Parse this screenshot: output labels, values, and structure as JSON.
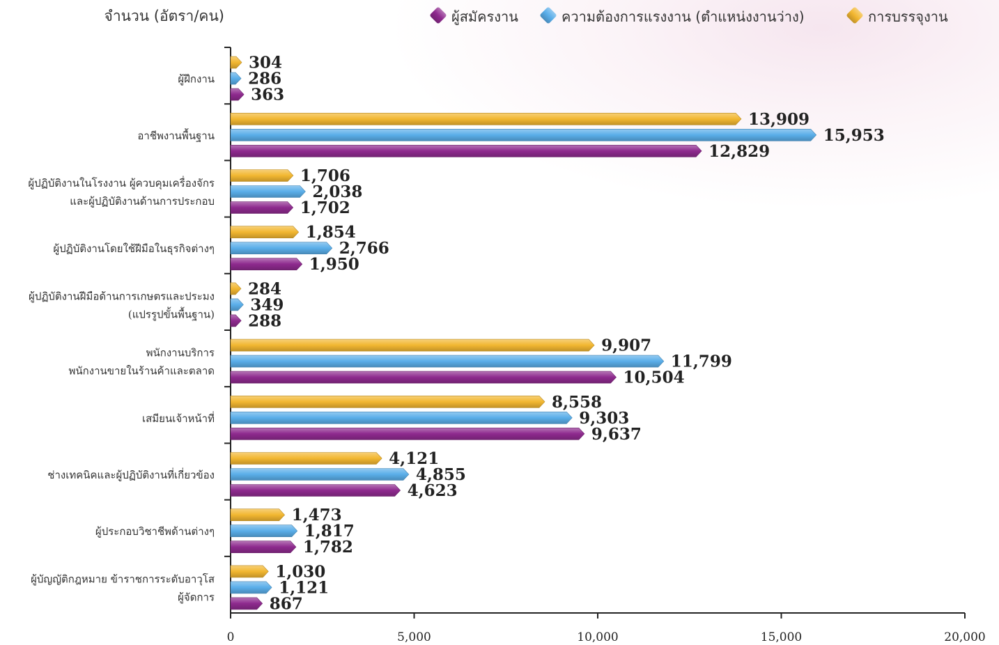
{
  "chart_data": {
    "type": "bar",
    "orientation": "horizontal",
    "unit_label": "จำนวน (อัตรา/คน)",
    "categories": [
      [
        "ผู้ฝึกงาน"
      ],
      [
        "อาชีพงานพื้นฐาน"
      ],
      [
        "ผู้ปฏิบัติงานในโรงงาน ผู้ควบคุมเครื่องจักร",
        "และผู้ปฏิบัติงานด้านการประกอบ"
      ],
      [
        "ผู้ปฏิบัติงานโดยใช้ฝีมือในธุรกิจต่างๆ"
      ],
      [
        "ผู้ปฏิบัติงานฝีมือด้านการเกษตรและประมง",
        "(แปรรูปขั้นพื้นฐาน)"
      ],
      [
        "พนักงานบริการ",
        "พนักงานขายในร้านค้าและตลาด"
      ],
      [
        "เสมียนเจ้าหน้าที่"
      ],
      [
        "ช่างเทคนิคและผู้ปฏิบัติงานที่เกี่ยวข้อง"
      ],
      [
        "ผู้ประกอบวิชาชีพด้านต่างๆ"
      ],
      [
        "ผู้บัญญัติกฎหมาย ข้าราชการระดับอาวุโส",
        "ผู้จัดการ"
      ]
    ],
    "series": [
      {
        "name": "การบรรจุงาน",
        "color": "#f2b731",
        "values": [
          304,
          13909,
          1706,
          1854,
          284,
          9907,
          8558,
          4121,
          1473,
          1030
        ],
        "labels": [
          "304",
          "13,909",
          "1,706",
          "1,854",
          "284",
          "9,907",
          "8,558",
          "4,121",
          "1,473",
          "1,030"
        ]
      },
      {
        "name": "ความต้องการแรงงาน (ตำแหน่งงานว่าง)",
        "color": "#5aaee9",
        "values": [
          286,
          15953,
          2038,
          2766,
          349,
          11799,
          9303,
          4855,
          1817,
          1121
        ],
        "labels": [
          "286",
          "15,953",
          "2,038",
          "2,766",
          "349",
          "11,799",
          "9,303",
          "4,855",
          "1,817",
          "1,121"
        ]
      },
      {
        "name": "ผู้สมัครงาน",
        "color": "#8e2a8e",
        "values": [
          363,
          12829,
          1702,
          1950,
          288,
          10504,
          9637,
          4623,
          1782,
          867
        ],
        "labels": [
          "363",
          "12,829",
          "1,702",
          "1,950",
          "288",
          "10,504",
          "9,637",
          "4,623",
          "1,782",
          "867"
        ]
      }
    ],
    "legend_order": [
      "ผู้สมัครงาน",
      "ความต้องการแรงงาน (ตำแหน่งงานว่าง)",
      "การบรรจุงาน"
    ],
    "legend_position": "top-right",
    "xlim": [
      0,
      20000
    ],
    "xticks": [
      0,
      5000,
      10000,
      15000,
      20000
    ],
    "xtick_labels": [
      "0",
      "5,000",
      "10,000",
      "15,000",
      "20,000"
    ],
    "grid": false
  }
}
